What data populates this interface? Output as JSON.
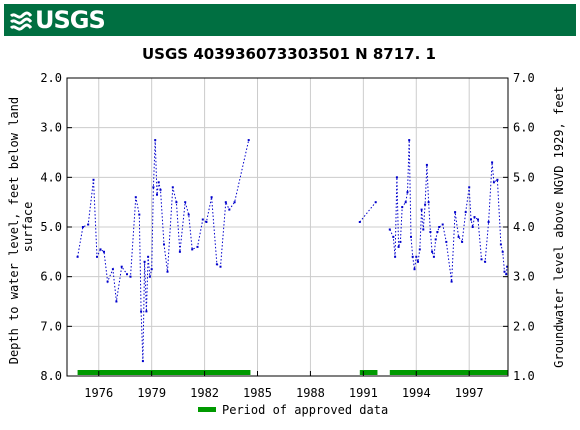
{
  "header": {
    "logo_text": "USGS"
  },
  "chart_data": {
    "type": "scatter",
    "title": "USGS 403936073303501 N 8717. 1",
    "ylabel_left": "Depth to water level, feet below land surface",
    "ylabel_left_lines": [
      "Depth to water level, feet below land",
      "surface"
    ],
    "ylabel_right": "Groundwater level above NGVD 1929, feet",
    "xlim": [
      1974.2,
      1999.2
    ],
    "ylim_left": [
      8.0,
      2.0
    ],
    "ylim_right": [
      1.0,
      7.0
    ],
    "left_ticks": [
      2.0,
      3.0,
      4.0,
      5.0,
      6.0,
      7.0,
      8.0
    ],
    "left_tick_labels": [
      "2.0",
      "3.0",
      "4.0",
      "5.0",
      "6.0",
      "7.0",
      "8.0"
    ],
    "right_ticks": [
      7.0,
      6.0,
      5.0,
      4.0,
      3.0,
      2.0,
      1.0
    ],
    "right_tick_labels": [
      "7.0",
      "6.0",
      "5.0",
      "4.0",
      "3.0",
      "2.0",
      "1.0"
    ],
    "x_ticks": [
      1976,
      1979,
      1982,
      1985,
      1988,
      1991,
      1994,
      1997
    ],
    "x_tick_labels": [
      "1976",
      "1979",
      "1982",
      "1985",
      "1988",
      "1991",
      "1994",
      "1997"
    ],
    "grid": true,
    "series": [
      {
        "color": "#0000cc",
        "segments": [
          [
            [
              1974.8,
              5.6
            ],
            [
              1975.1,
              5.0
            ],
            [
              1975.4,
              4.95
            ],
            [
              1975.7,
              4.05
            ],
            [
              1975.9,
              5.6
            ],
            [
              1976.1,
              5.45
            ],
            [
              1976.3,
              5.5
            ],
            [
              1976.5,
              6.1
            ],
            [
              1976.8,
              5.85
            ],
            [
              1977.0,
              6.5
            ],
            [
              1977.3,
              5.8
            ],
            [
              1977.6,
              5.95
            ],
            [
              1977.8,
              6.0
            ],
            [
              1978.1,
              4.4
            ],
            [
              1978.3,
              4.75
            ],
            [
              1978.4,
              6.7
            ],
            [
              1978.5,
              7.7
            ],
            [
              1978.6,
              5.7
            ],
            [
              1978.7,
              6.7
            ],
            [
              1978.8,
              5.6
            ],
            [
              1978.9,
              6.0
            ],
            [
              1979.0,
              5.85
            ],
            [
              1979.1,
              4.2
            ],
            [
              1979.2,
              3.25
            ],
            [
              1979.3,
              4.35
            ],
            [
              1979.4,
              4.1
            ],
            [
              1979.5,
              4.25
            ],
            [
              1979.7,
              5.35
            ],
            [
              1979.9,
              5.9
            ],
            [
              1980.2,
              4.2
            ],
            [
              1980.4,
              4.5
            ],
            [
              1980.6,
              5.5
            ],
            [
              1980.9,
              4.5
            ],
            [
              1981.1,
              4.75
            ],
            [
              1981.3,
              5.45
            ],
            [
              1981.6,
              5.4
            ],
            [
              1981.9,
              4.85
            ],
            [
              1982.1,
              4.9
            ],
            [
              1982.4,
              4.4
            ],
            [
              1982.7,
              5.75
            ],
            [
              1982.9,
              5.8
            ],
            [
              1983.2,
              4.5
            ],
            [
              1983.4,
              4.65
            ],
            [
              1983.7,
              4.5
            ],
            [
              1984.5,
              3.25
            ]
          ],
          [
            [
              1990.8,
              4.9
            ],
            [
              1991.7,
              4.5
            ]
          ],
          [
            [
              1992.5,
              5.05
            ],
            [
              1992.7,
              5.2
            ],
            [
              1992.8,
              5.6
            ],
            [
              1992.9,
              4.0
            ],
            [
              1993.0,
              5.4
            ],
            [
              1993.1,
              5.3
            ],
            [
              1993.2,
              4.6
            ],
            [
              1993.4,
              4.5
            ],
            [
              1993.5,
              4.3
            ],
            [
              1993.6,
              3.25
            ],
            [
              1993.7,
              5.2
            ],
            [
              1993.8,
              5.6
            ],
            [
              1993.9,
              5.85
            ],
            [
              1994.0,
              5.6
            ],
            [
              1994.1,
              5.7
            ],
            [
              1994.2,
              5.45
            ],
            [
              1994.3,
              4.65
            ],
            [
              1994.4,
              5.05
            ],
            [
              1994.5,
              4.55
            ],
            [
              1994.6,
              3.75
            ],
            [
              1994.7,
              4.5
            ],
            [
              1994.8,
              5.1
            ],
            [
              1994.9,
              5.5
            ],
            [
              1995.0,
              5.6
            ],
            [
              1995.1,
              5.25
            ],
            [
              1995.2,
              5.1
            ],
            [
              1995.3,
              5.0
            ],
            [
              1995.5,
              4.95
            ],
            [
              1995.7,
              5.3
            ],
            [
              1996.0,
              6.1
            ],
            [
              1996.2,
              4.7
            ],
            [
              1996.4,
              5.2
            ],
            [
              1996.6,
              5.3
            ],
            [
              1996.8,
              4.7
            ],
            [
              1997.0,
              4.2
            ],
            [
              1997.1,
              4.85
            ],
            [
              1997.2,
              5.0
            ],
            [
              1997.3,
              4.8
            ],
            [
              1997.5,
              4.85
            ],
            [
              1997.7,
              5.65
            ],
            [
              1997.9,
              5.7
            ],
            [
              1998.1,
              4.9
            ],
            [
              1998.3,
              3.7
            ],
            [
              1998.4,
              4.1
            ],
            [
              1998.6,
              4.05
            ],
            [
              1998.8,
              5.35
            ],
            [
              1998.9,
              5.5
            ],
            [
              1999.0,
              5.9
            ],
            [
              1999.1,
              5.95
            ],
            [
              1999.15,
              5.8
            ]
          ]
        ]
      }
    ],
    "approved_periods": [
      [
        1974.8,
        1984.6
      ],
      [
        1990.8,
        1991.8
      ],
      [
        1992.5,
        1999.2
      ]
    ],
    "approved_color": "#009900",
    "legend": {
      "label": "Period of approved data",
      "position": "bottom-center"
    }
  }
}
